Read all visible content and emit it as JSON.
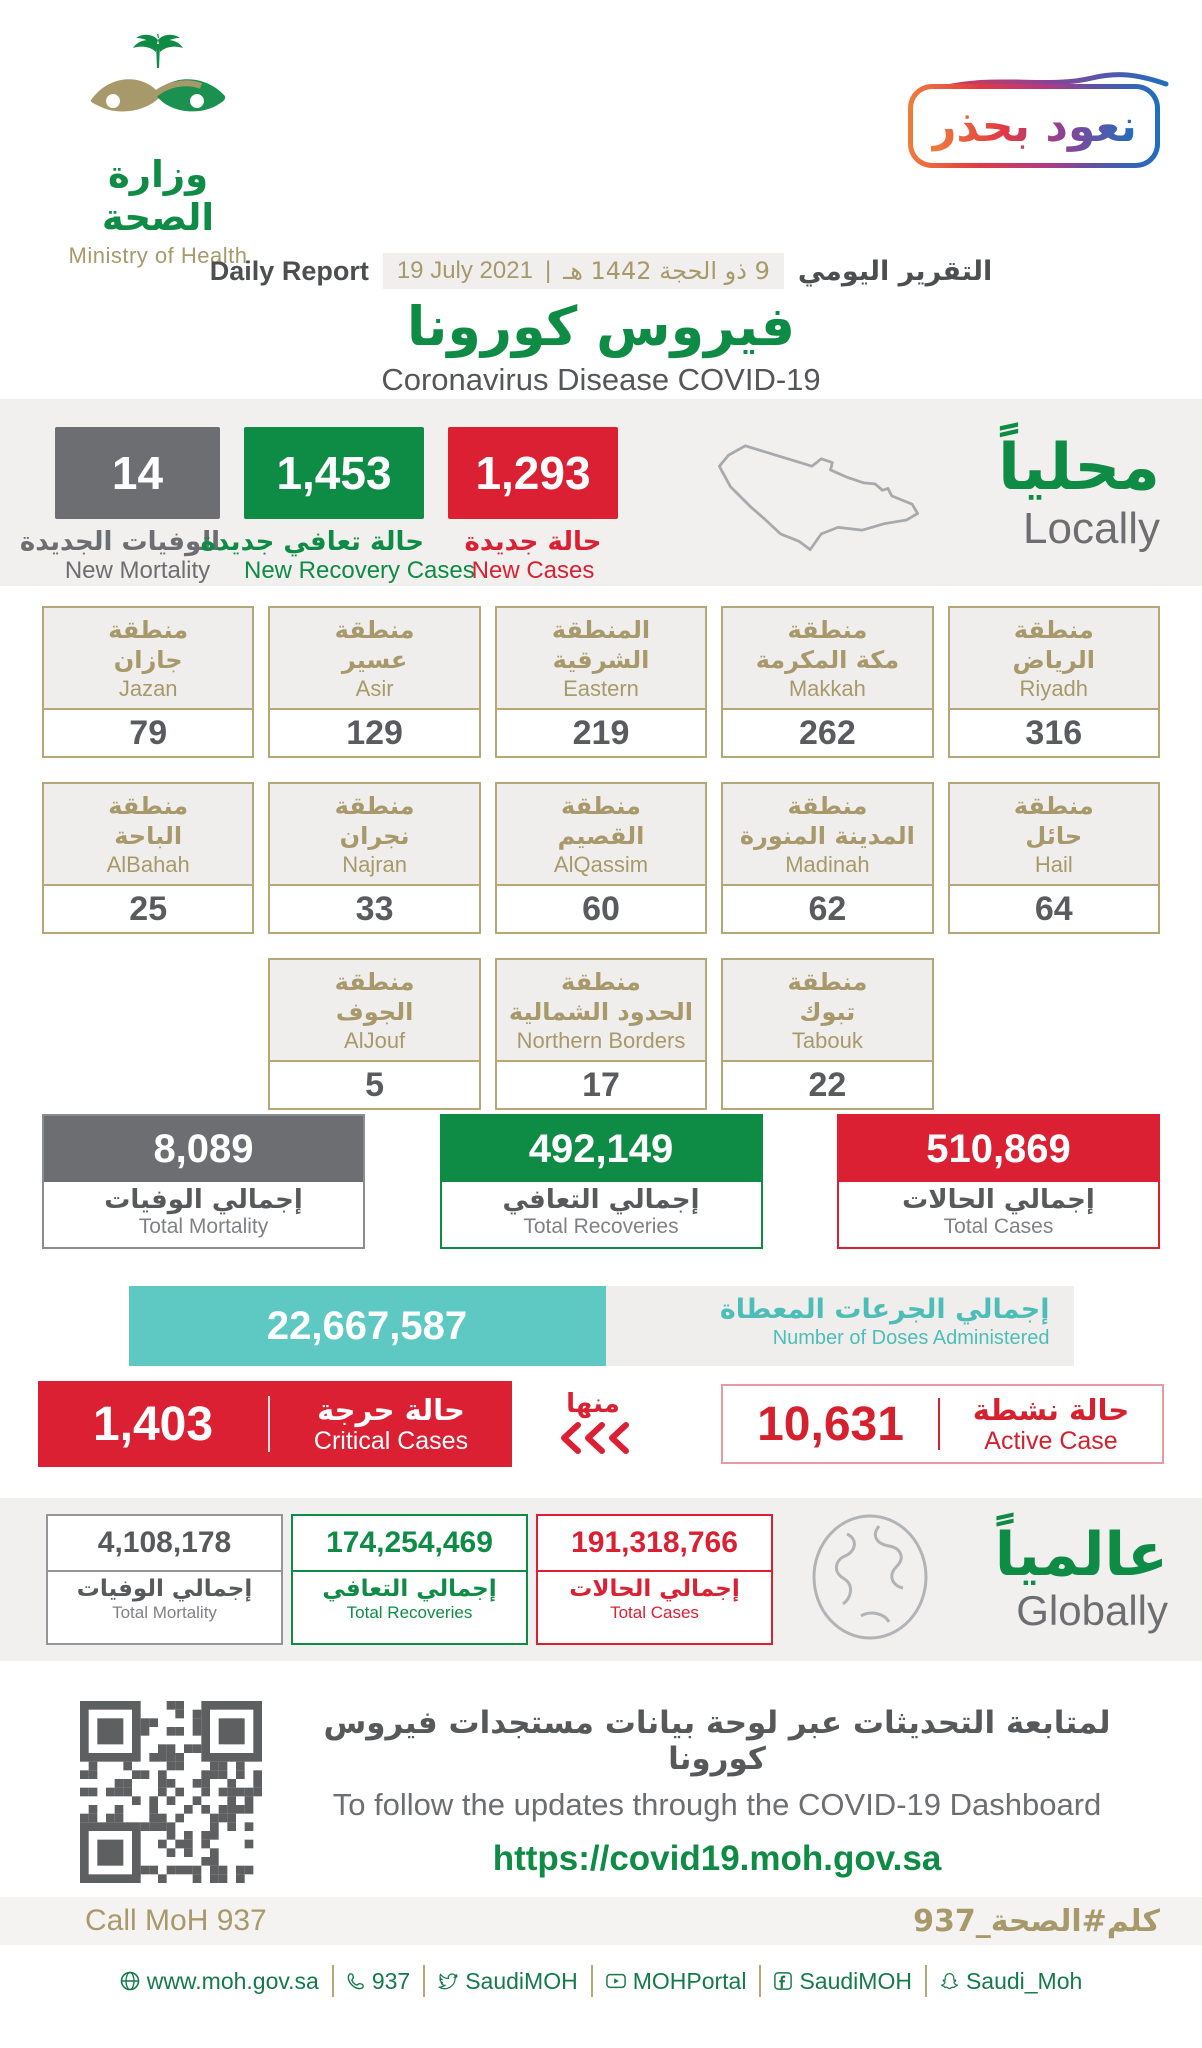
{
  "header": {
    "logo_ar": "وزارة الصحة",
    "logo_en": "Ministry of Health",
    "badge": "نعود بحذر",
    "report_label_en": "Daily Report",
    "report_label_ar": "التقرير اليومي",
    "date_gregorian": "19 July 2021",
    "date_separator": "|",
    "date_hijri": "9 ذو الحجة 1442 هـ",
    "title_ar": "فيروس كورونا",
    "title_en": "Coronavirus Disease COVID-19"
  },
  "locally": {
    "heading_ar": "محلياً",
    "heading_en": "Locally",
    "new_mortality": {
      "value": "14",
      "label_ar": "الوفيات الجديدة",
      "label_en": "New Mortality"
    },
    "new_recoveries": {
      "value": "1,453",
      "label_ar": "حالة تعافي جديدة",
      "label_en": "New Recovery Cases"
    },
    "new_cases": {
      "value": "1,293",
      "label_ar": "حالة جديدة",
      "label_en": "New Cases"
    }
  },
  "regions": {
    "row1": [
      {
        "ar1": "منطقة",
        "ar2": "جازان",
        "en": "Jazan",
        "value": "79"
      },
      {
        "ar1": "منطقة",
        "ar2": "عسير",
        "en": "Asir",
        "value": "129"
      },
      {
        "ar1": "المنطقة",
        "ar2": "الشرقية",
        "en": "Eastern",
        "value": "219"
      },
      {
        "ar1": "منطقة",
        "ar2": "مكة المكرمة",
        "en": "Makkah",
        "value": "262"
      },
      {
        "ar1": "منطقة",
        "ar2": "الرياض",
        "en": "Riyadh",
        "value": "316"
      }
    ],
    "row2": [
      {
        "ar1": "منطقة",
        "ar2": "الباحة",
        "en": "AlBahah",
        "value": "25"
      },
      {
        "ar1": "منطقة",
        "ar2": "نجران",
        "en": "Najran",
        "value": "33"
      },
      {
        "ar1": "منطقة",
        "ar2": "القصيم",
        "en": "AlQassim",
        "value": "60"
      },
      {
        "ar1": "منطقة",
        "ar2": "المدينة المنورة",
        "en": "Madinah",
        "value": "62"
      },
      {
        "ar1": "منطقة",
        "ar2": "حائل",
        "en": "Hail",
        "value": "64"
      }
    ],
    "row3": [
      {
        "ar1": "منطقة",
        "ar2": "الجوف",
        "en": "AlJouf",
        "value": "5"
      },
      {
        "ar1": "منطقة",
        "ar2": "الحدود الشمالية",
        "en": "Northern Borders",
        "value": "17"
      },
      {
        "ar1": "منطقة",
        "ar2": "تبوك",
        "en": "Tabouk",
        "value": "22"
      }
    ]
  },
  "totals": {
    "mortality": {
      "value": "8,089",
      "label_ar": "إجمالي الوفيات",
      "label_en": "Total Mortality"
    },
    "recoveries": {
      "value": "492,149",
      "label_ar": "إجمالي التعافي",
      "label_en": "Total Recoveries"
    },
    "cases": {
      "value": "510,869",
      "label_ar": "إجمالي الحالات",
      "label_en": "Total Cases"
    }
  },
  "doses": {
    "value": "22,667,587",
    "label_ar": "إجمالي الجرعات المعطاة",
    "label_en": "Number of Doses Administered"
  },
  "critical_active": {
    "critical": {
      "value": "1,403",
      "label_ar": "حالة حرجة",
      "label_en": "Critical Cases"
    },
    "of_which_ar": "منها",
    "active": {
      "value": "10,631",
      "label_ar": "حالة نشطة",
      "label_en": "Active Case"
    }
  },
  "globally": {
    "heading_ar": "عالمياً",
    "heading_en": "Globally",
    "mortality": {
      "value": "4,108,178",
      "label_ar": "إجمالي الوفيات",
      "label_en": "Total Mortality"
    },
    "recoveries": {
      "value": "174,254,469",
      "label_ar": "إجمالي التعافي",
      "label_en": "Total Recoveries"
    },
    "cases": {
      "value": "191,318,766",
      "label_ar": "إجمالي الحالات",
      "label_en": "Total Cases"
    }
  },
  "dashboard": {
    "note_ar": "لمتابعة التحديثات عبر لوحة بيانات مستجدات فيروس كورونا",
    "note_en": "To follow the updates through the COVID-19 Dashboard",
    "url": "https://covid19.moh.gov.sa"
  },
  "call_band": {
    "en": "Call MoH 937",
    "ar": "كلم#الصحة_937"
  },
  "footer": {
    "items": [
      {
        "icon": "website",
        "label": "www.moh.gov.sa"
      },
      {
        "icon": "phone",
        "label": "937"
      },
      {
        "icon": "twitter",
        "label": "SaudiMOH"
      },
      {
        "icon": "youtube",
        "label": "MOHPortal"
      },
      {
        "icon": "facebook",
        "label": "SaudiMOH"
      },
      {
        "icon": "snapchat",
        "label": "Saudi_Moh"
      }
    ]
  },
  "colors": {
    "green": "#0e8c46",
    "red": "#da2032",
    "gray": "#6d6e71",
    "gold": "#a8996b",
    "teal": "#5ec8c3",
    "band": "#f1f0ee"
  }
}
